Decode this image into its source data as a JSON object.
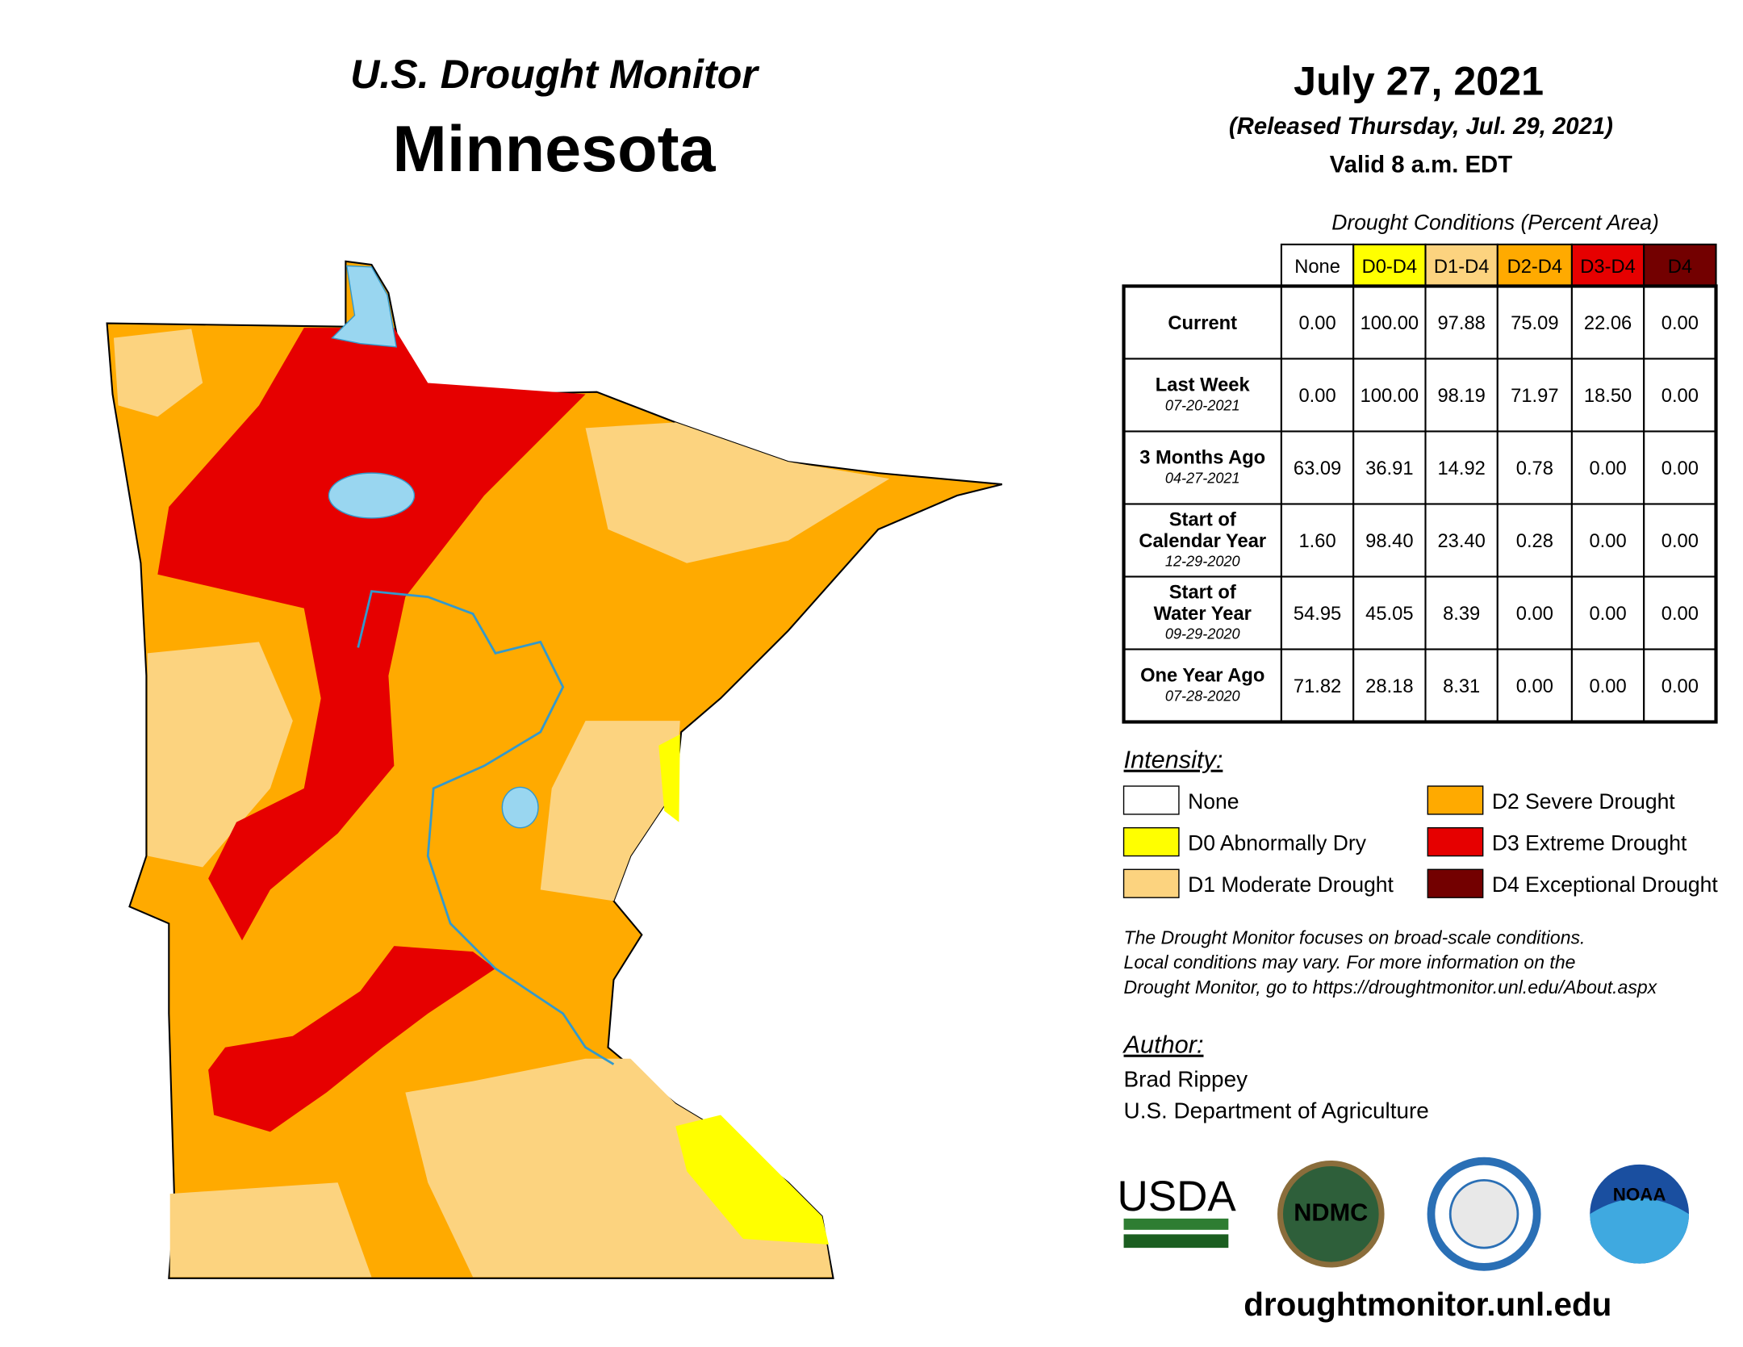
{
  "header": {
    "subtitle": "U.S. Drought Monitor",
    "title": "Minnesota",
    "date": "July 27, 2021",
    "released": "(Released Thursday, Jul. 29, 2021)",
    "valid": "Valid 8 a.m. EDT"
  },
  "table": {
    "caption": "Drought Conditions (Percent Area)",
    "columns": [
      "None",
      "D0-D4",
      "D1-D4",
      "D2-D4",
      "D3-D4",
      "D4"
    ],
    "rows": [
      {
        "label": [
          "Current"
        ],
        "values": [
          "0.00",
          "100.00",
          "97.88",
          "75.09",
          "22.06",
          "0.00"
        ]
      },
      {
        "label": [
          "Last Week"
        ],
        "date": "07-20-2021",
        "values": [
          "0.00",
          "100.00",
          "98.19",
          "71.97",
          "18.50",
          "0.00"
        ]
      },
      {
        "label": [
          "3 Months Ago"
        ],
        "date": "04-27-2021",
        "values": [
          "63.09",
          "36.91",
          "14.92",
          "0.78",
          "0.00",
          "0.00"
        ]
      },
      {
        "label": [
          "Start of",
          "Calendar Year"
        ],
        "date": "12-29-2020",
        "values": [
          "1.60",
          "98.40",
          "23.40",
          "0.28",
          "0.00",
          "0.00"
        ]
      },
      {
        "label": [
          "Start of",
          "Water Year"
        ],
        "date": "09-29-2020",
        "values": [
          "54.95",
          "45.05",
          "8.39",
          "0.00",
          "0.00",
          "0.00"
        ]
      },
      {
        "label": [
          "One Year Ago"
        ],
        "date": "07-28-2020",
        "values": [
          "71.82",
          "28.18",
          "8.31",
          "0.00",
          "0.00",
          "0.00"
        ]
      }
    ]
  },
  "legend": {
    "title": "Intensity:",
    "items": [
      "None",
      "D0 Abnormally Dry",
      "D1 Moderate Drought",
      "D2 Severe Drought",
      "D3 Extreme Drought",
      "D4 Exceptional Drought"
    ]
  },
  "note": [
    "The Drought Monitor focuses on broad-scale conditions.",
    "Local conditions may vary. For more information on the",
    "Drought Monitor, go to https://droughtmonitor.unl.edu/About.aspx"
  ],
  "author": {
    "title": "Author:",
    "lines": [
      "Brad Rippey",
      "U.S. Department of Agriculture"
    ]
  },
  "logos": [
    "USDA",
    "NDMC",
    "NOAA"
  ],
  "url": "droughtmonitor.unl.edu"
}
